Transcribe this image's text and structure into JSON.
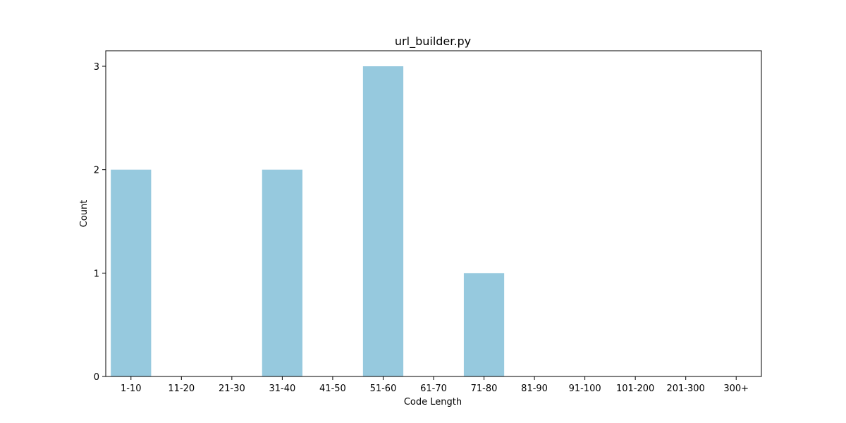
{
  "chart_data": {
    "type": "bar",
    "title": "url_builder.py",
    "xlabel": "Code Length",
    "ylabel": "Count",
    "categories": [
      "1-10",
      "11-20",
      "21-30",
      "31-40",
      "41-50",
      "51-60",
      "61-70",
      "71-80",
      "81-90",
      "91-100",
      "101-200",
      "201-300",
      "300+"
    ],
    "values": [
      2,
      0,
      0,
      2,
      0,
      3,
      0,
      1,
      0,
      0,
      0,
      0,
      0
    ],
    "ylim": [
      0,
      3.15
    ],
    "yticks": [
      0,
      1,
      2,
      3
    ],
    "bar_color": "#96c9de",
    "grid": false,
    "legend": "none"
  }
}
